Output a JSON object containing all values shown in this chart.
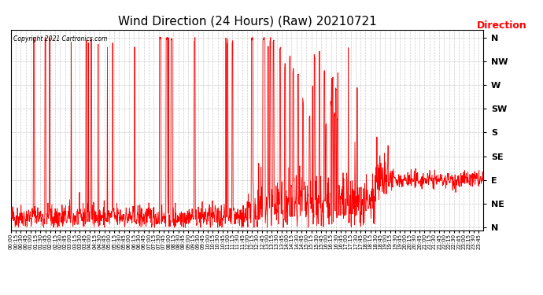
{
  "title": "Wind Direction (24 Hours) (Raw) 20210721",
  "title_fontsize": 11,
  "copyright_text": "Copyright 2021 Cartronics.com",
  "legend_label": "Direction",
  "legend_color": "red",
  "line_color": "red",
  "background_color": "#ffffff",
  "grid_color": "#aaaaaa",
  "ytick_labels": [
    "N",
    "NE",
    "E",
    "SE",
    "S",
    "SW",
    "W",
    "NW",
    "N"
  ],
  "ytick_values": [
    0,
    45,
    90,
    135,
    180,
    225,
    270,
    315,
    360
  ],
  "ylim": [
    -5,
    375
  ],
  "total_minutes": 1440,
  "seed": 42
}
